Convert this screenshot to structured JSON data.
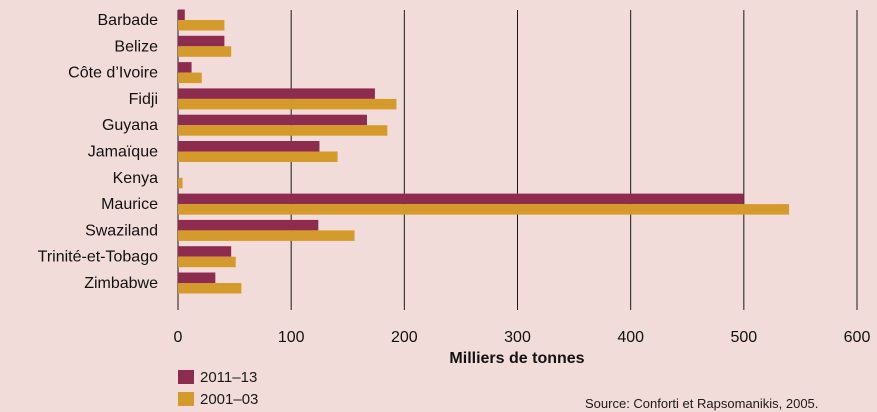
{
  "chart_data": {
    "type": "bar",
    "orientation": "horizontal",
    "categories": [
      "Barbade",
      "Belize",
      "Côte d’Ivoire",
      "Fidji",
      "Guyana",
      "Jamaïque",
      "Kenya",
      "Maurice",
      "Swaziland",
      "Trinité-et-Tobago",
      "Zimbabwe"
    ],
    "series": [
      {
        "name": "2011–13",
        "color": "#8e2c4f",
        "values": [
          6,
          41,
          12,
          174,
          167,
          125,
          0,
          500,
          124,
          47,
          33
        ]
      },
      {
        "name": "2001–03",
        "color": "#d49a2c",
        "values": [
          41,
          47,
          21,
          193,
          185,
          141,
          4,
          540,
          156,
          51,
          56
        ]
      }
    ],
    "xlabel": "Milliers de tonnes",
    "ylabel": "",
    "xlim": [
      0,
      600
    ],
    "xticks": [
      0,
      100,
      200,
      300,
      400,
      500,
      600
    ],
    "grid": true,
    "legend_position": "bottom-left"
  },
  "source": "Source: Conforti et Rapsomanikis, 2005."
}
